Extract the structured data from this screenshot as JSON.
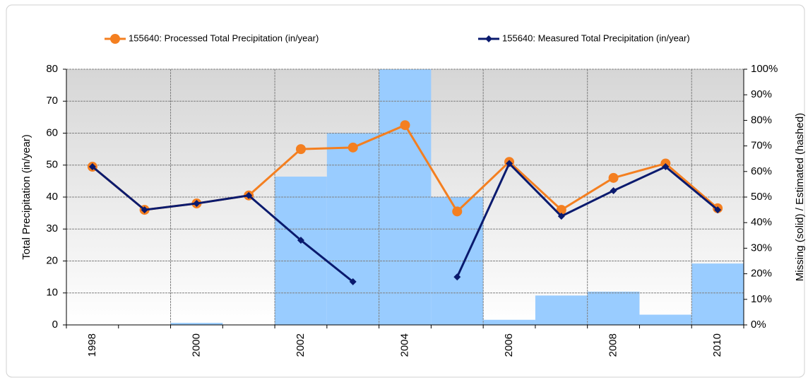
{
  "chart_data": {
    "type": "line",
    "categories": [
      "1998",
      null,
      "2000",
      null,
      "2002",
      null,
      "2004",
      null,
      "2006",
      null,
      "2008",
      null,
      "2010"
    ],
    "ylabel": "Total Precipitation (in/year)",
    "y2label": "Missing (solid) / Estimated (hashed)",
    "ylim": [
      0,
      80
    ],
    "yticks": [
      0,
      10,
      20,
      30,
      40,
      50,
      60,
      70,
      80
    ],
    "y2lim": [
      0,
      100
    ],
    "y2ticks": [
      {
        "value": 0,
        "label": "0%"
      },
      {
        "value": 10,
        "label": "10%"
      },
      {
        "value": 20,
        "label": "20%"
      },
      {
        "value": 30,
        "label": "30%"
      },
      {
        "value": 40,
        "label": "40%"
      },
      {
        "value": 50,
        "label": "50%"
      },
      {
        "value": 60,
        "label": "60%"
      },
      {
        "value": 70,
        "label": "70%"
      },
      {
        "value": 80,
        "label": "80%"
      },
      {
        "value": 90,
        "label": "90%"
      },
      {
        "value": 100,
        "label": "100%"
      }
    ],
    "grid": true,
    "series": [
      {
        "name": "Missing",
        "type": "bar",
        "axis": "y2",
        "color": "#99ccff",
        "values": [
          0,
          0,
          0.8,
          0,
          58,
          75,
          100,
          50,
          2,
          11.5,
          13,
          4,
          24
        ]
      },
      {
        "name": "155640: Processed Total Precipitation (in/year)",
        "type": "line",
        "color": "#f47f20",
        "marker": "circle",
        "values": [
          49.5,
          36,
          38,
          40.5,
          55,
          55.5,
          62.5,
          35.5,
          51,
          36,
          46,
          50.5,
          36.5
        ]
      },
      {
        "name": "155640: Measured Total Precipitation (in/year)",
        "type": "line",
        "color": "#0a1a6e",
        "marker": "diamond",
        "values": [
          49.5,
          36,
          38,
          40.5,
          26.5,
          13.5,
          null,
          15,
          50.5,
          34,
          42,
          49.5,
          36
        ]
      }
    ]
  }
}
